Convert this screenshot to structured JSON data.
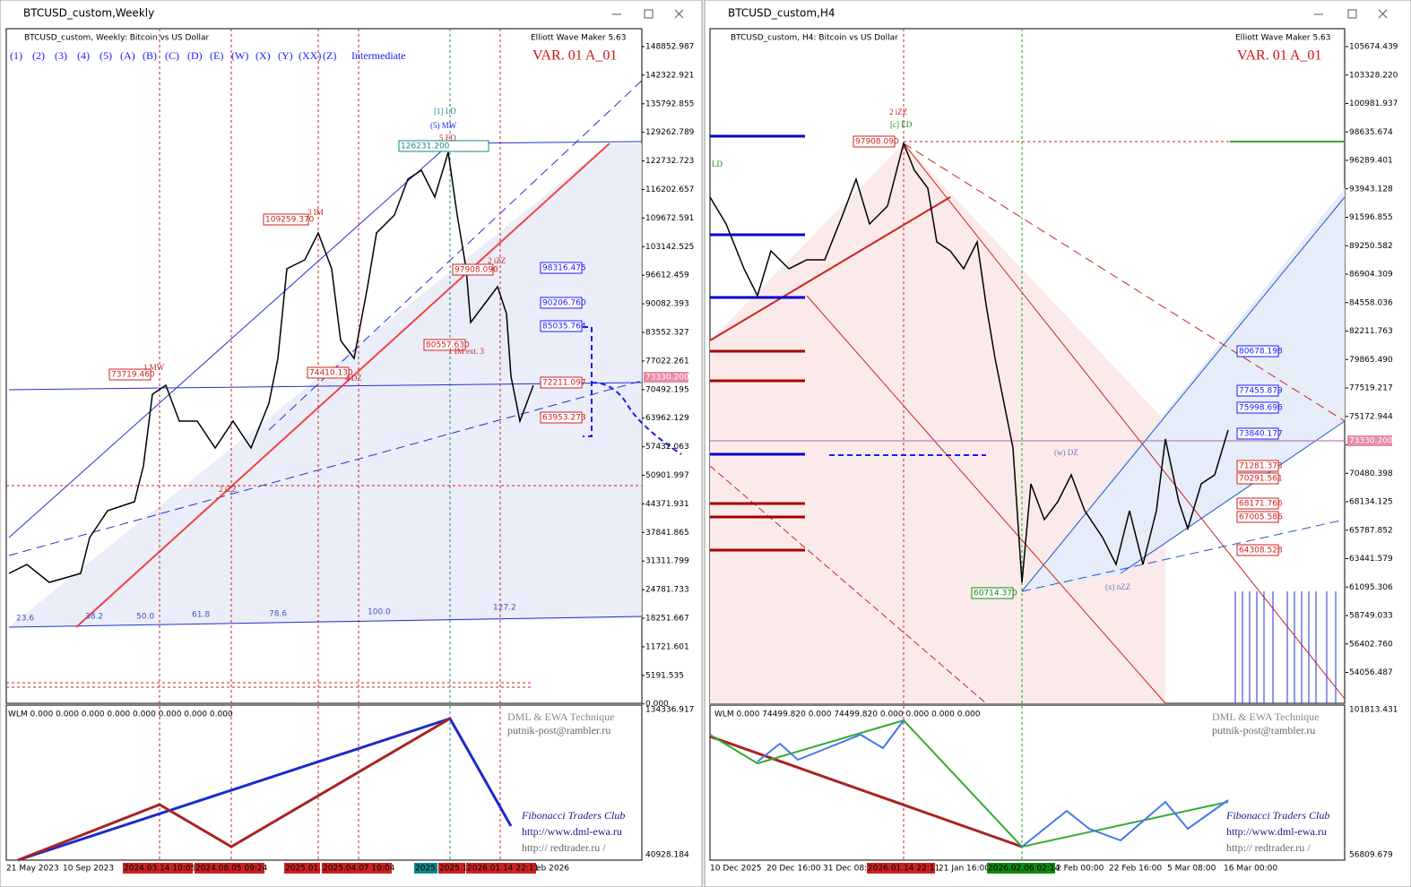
{
  "windows": [
    {
      "title": "BTCUSD_custom,Weekly",
      "header": "BTCUSD_custom, Weekly:  Bitcoin vs US Dollar",
      "indicator": "Elliott Wave Maker 5.63",
      "variant": "VAR. 01 A_01",
      "wave_buttons": [
        "(1)",
        "(2)",
        "(3)",
        "(4)",
        "(5)",
        "(A)",
        "(B)",
        "(C)",
        "(D)",
        "(E)",
        "(W)",
        "(X)",
        "(Y)",
        "(XX)",
        "(Z)",
        "Intermediate"
      ],
      "price_axis": [
        "148852.987",
        "142322.921",
        "135792.855",
        "129262.789",
        "122732.723",
        "116202.657",
        "109672.591",
        "103142.525",
        "96612.459",
        "90082.393",
        "83552.327",
        "77022.261",
        "70492.195",
        "63962.129",
        "57432.063",
        "50901.997",
        "44371.931",
        "37841.865",
        "31311.799",
        "24781.733",
        "18251.667",
        "11721.601",
        "5191.535",
        "0.000"
      ],
      "current_price": "73330.200",
      "price_labels": [
        "126231.200",
        "109259.370",
        "97908.090",
        "98316.475",
        "90206.760",
        "85035.764",
        "80557.630",
        "74410.130",
        "73719.460",
        "72211.097",
        "63953.273"
      ],
      "wave_labels": [
        "[1] LD",
        "(5) MW",
        "5 ED",
        "3 IM",
        "2 iZZ",
        "1 IM ext. 3",
        "1 MW",
        "4 DZ",
        "2 iZZ"
      ],
      "fib_labels": [
        "23.6",
        "38.2",
        "50.0",
        "61.8",
        "78.6",
        "100.0",
        "127.2"
      ],
      "time_axis": [
        "21 May 2023",
        "10 Sep 2023",
        "2024.03.14 10:05",
        "2024.08.05 09:24",
        "2025.01.2",
        "2025.04.07 10:04",
        "2025.",
        "2025.1",
        "2026.01.14 22:11",
        "eb 2026"
      ],
      "sub_header": "WLM 0.000 0.000 0.000 0.000 0.000 0.000 0.000 0.000",
      "sub_axis": [
        "134336.917",
        "40928.184"
      ],
      "footer": [
        "DML & EWA Technique",
        "putnik-post@rambler.ru",
        "Fibonacci     Traders     Club",
        "http://www.dml-ewa.ru",
        "http:// redtrader.ru /"
      ]
    },
    {
      "title": "BTCUSD_custom,H4",
      "header": "BTCUSD_custom, H4:  Bitcoin vs US Dollar",
      "indicator": "Elliott Wave Maker 5.63",
      "variant": "VAR. 01 A_01",
      "price_axis": [
        "105674.439",
        "103328.220",
        "100981.937",
        "98635.674",
        "96289.401",
        "93943.128",
        "91596.855",
        "89250.582",
        "86904.309",
        "84558.036",
        "82211.763",
        "79865.490",
        "77519.217",
        "75172.944",
        "",
        "70480.398",
        "68134.125",
        "65787.852",
        "63441.579",
        "61095.306",
        "58749.033",
        "56402.760",
        "54056.487"
      ],
      "current_price": "73330.200",
      "price_labels": [
        "97908.090",
        "80678.198",
        "77455.879",
        "75998.696",
        "73840.177",
        "71281.373",
        "70291.561",
        "68171.766",
        "67005.586",
        "64308.528",
        "60714.370"
      ],
      "wave_labels": [
        "2 iZZ",
        "[c] ED",
        "(w) DZ",
        "(x) nZZ",
        "LD"
      ],
      "time_axis": [
        "10 Dec 2025",
        "20 Dec 16:00",
        "31 Dec 08:0",
        "2026.01.14 22:11",
        "21 Jan 16:00",
        "2026.02.06 02:14",
        "2 Feb 00:00",
        "22 Feb 16:00",
        "5 Mar 08:00",
        "16 Mar 00:00"
      ],
      "sub_header": "WLM 0.000 74499.820 0.000 74499.820 0.000 0.000 0.000 0.000",
      "sub_axis": [
        "101813.431",
        "56809.679"
      ],
      "footer": [
        "DML & EWA Technique",
        "putnik-post@rambler.ru",
        "Fibonacci     Traders     Club",
        "http://www.dml-ewa.ru",
        "http:// redtrader.ru /"
      ]
    }
  ]
}
